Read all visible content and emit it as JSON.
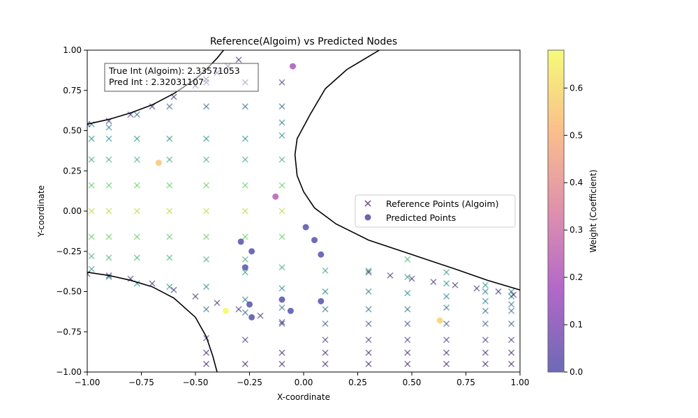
{
  "chart_data": {
    "type": "scatter",
    "title": "Reference(Algoim) vs Predicted Nodes",
    "xlabel": "X-coordinate",
    "ylabel": "Y-coordinate",
    "xlim": [
      -1.0,
      1.0
    ],
    "ylim": [
      -1.0,
      1.0
    ],
    "xticks": [
      -1.0,
      -0.75,
      -0.5,
      -0.25,
      0.0,
      0.25,
      0.5,
      0.75,
      1.0
    ],
    "yticks": [
      -1.0,
      -0.75,
      -0.5,
      -0.25,
      0.0,
      0.25,
      0.5,
      0.75,
      1.0
    ],
    "xtick_labels": [
      "−1.00",
      "−0.75",
      "−0.50",
      "−0.25",
      "0.00",
      "0.25",
      "0.50",
      "0.75",
      "1.00"
    ],
    "ytick_labels": [
      "−1.00",
      "−0.75",
      "−0.50",
      "−0.25",
      "0.00",
      "0.25",
      "0.50",
      "0.75",
      "1.00"
    ],
    "grid": false,
    "legend_position": "center-right",
    "annotation": {
      "line1": "True Int (Algoim): 2.33571053",
      "line2": "Pred Int : 2.32031107",
      "position": "top-left"
    },
    "colorbar": {
      "label": "Weight (Coefficient)",
      "range": [
        0.0,
        0.68
      ],
      "ticks": [
        0.0,
        0.1,
        0.2,
        0.3,
        0.4,
        0.5,
        0.6
      ],
      "tick_labels": [
        "0.0",
        "0.1",
        "0.2",
        "0.3",
        "0.4",
        "0.5",
        "0.6"
      ],
      "colormap": "plasma"
    },
    "series": [
      {
        "name": "Reference Points (Algoim)",
        "marker": "x",
        "colormap": "viridis",
        "opacity": 0.6,
        "columns": [
          {
            "x": -0.98,
            "ys": [
              0.54,
              0.45,
              0.32,
              0.16,
              0.0,
              -0.16,
              -0.28,
              -0.36
            ]
          },
          {
            "x": -0.9,
            "ys": [
              0.52,
              0.45,
              0.32,
              0.16,
              0.0,
              -0.16,
              -0.29,
              -0.41
            ]
          },
          {
            "x": -0.77,
            "ys": [
              0.6,
              0.45,
              0.32,
              0.16,
              0.0,
              -0.16,
              -0.29,
              -0.45
            ]
          },
          {
            "x": -0.62,
            "ys": [
              0.65,
              0.45,
              0.32,
              0.16,
              0.0,
              -0.16,
              -0.29,
              -0.47
            ]
          },
          {
            "x": -0.45,
            "ys": [
              0.8,
              0.65,
              0.45,
              0.32,
              0.16,
              0.0,
              -0.16,
              -0.3,
              -0.47,
              -0.61,
              -0.79,
              -0.88,
              -0.95
            ]
          },
          {
            "x": -0.27,
            "ys": [
              0.8,
              0.65,
              0.45,
              0.32,
              0.16,
              0.0,
              -0.16,
              -0.3,
              -0.38,
              -0.55,
              -0.63,
              -0.8,
              -0.95
            ]
          },
          {
            "x": -0.1,
            "ys": [
              0.8,
              0.65,
              0.55,
              0.47,
              0.32,
              0.16,
              0.0,
              -0.16,
              -0.35,
              -0.48,
              -0.6,
              -0.7,
              -0.88,
              -0.95
            ]
          },
          {
            "x": 0.1,
            "ys": [
              -0.37,
              -0.5,
              -0.61,
              -0.7,
              -0.8,
              -0.88,
              -0.95
            ]
          },
          {
            "x": 0.3,
            "ys": [
              -0.37,
              -0.5,
              -0.61,
              -0.7,
              -0.8,
              -0.88,
              -0.95
            ]
          },
          {
            "x": 0.48,
            "ys": [
              -0.3,
              -0.41,
              -0.51,
              -0.61,
              -0.7,
              -0.8,
              -0.88,
              -0.95
            ]
          },
          {
            "x": 0.66,
            "ys": [
              -0.38,
              -0.45,
              -0.53,
              -0.6,
              -0.7,
              -0.8,
              -0.88,
              -0.95
            ]
          },
          {
            "x": 0.84,
            "ys": [
              -0.46,
              -0.5,
              -0.56,
              -0.62,
              -0.7,
              -0.8,
              -0.88,
              -0.95
            ]
          },
          {
            "x": 0.96,
            "ys": [
              -0.5,
              -0.53,
              -0.58,
              -0.62,
              -0.7,
              -0.8,
              -0.88,
              -0.95
            ]
          }
        ],
        "curve_upper_left": [
          [
            -1.0,
            0.54
          ],
          [
            -0.9,
            0.56
          ],
          [
            -0.8,
            0.6
          ],
          [
            -0.7,
            0.65
          ],
          [
            -0.6,
            0.71
          ],
          [
            -0.5,
            0.78
          ],
          [
            -0.45,
            0.82
          ],
          [
            -0.4,
            0.86
          ],
          [
            -0.35,
            0.9
          ],
          [
            -0.3,
            0.94
          ]
        ],
        "curve_lower_left": [
          [
            -1.0,
            -0.39
          ],
          [
            -0.9,
            -0.4
          ],
          [
            -0.8,
            -0.42
          ],
          [
            -0.7,
            -0.45
          ],
          [
            -0.6,
            -0.49
          ],
          [
            -0.5,
            -0.53
          ],
          [
            -0.4,
            -0.57
          ],
          [
            -0.3,
            -0.61
          ],
          [
            -0.2,
            -0.65
          ],
          [
            -0.1,
            -0.69
          ]
        ],
        "curve_lower_right": [
          [
            0.3,
            -0.38
          ],
          [
            0.4,
            -0.4
          ],
          [
            0.5,
            -0.42
          ],
          [
            0.6,
            -0.44
          ],
          [
            0.7,
            -0.46
          ],
          [
            0.8,
            -0.48
          ],
          [
            0.9,
            -0.5
          ],
          [
            0.97,
            -0.52
          ]
        ]
      },
      {
        "name": "Predicted Points",
        "marker": "o",
        "colormap": "plasma",
        "opacity": 0.6,
        "points": [
          {
            "x": -0.05,
            "y": 0.9,
            "w": 0.2
          },
          {
            "x": -0.67,
            "y": 0.3,
            "w": 0.55
          },
          {
            "x": -0.13,
            "y": 0.09,
            "w": 0.23
          },
          {
            "x": 0.01,
            "y": -0.1,
            "w": 0.0
          },
          {
            "x": -0.29,
            "y": -0.19,
            "w": 0.0
          },
          {
            "x": 0.05,
            "y": -0.18,
            "w": 0.0
          },
          {
            "x": -0.24,
            "y": -0.25,
            "w": 0.0
          },
          {
            "x": 0.08,
            "y": -0.27,
            "w": 0.0
          },
          {
            "x": -0.27,
            "y": -0.35,
            "w": 0.0
          },
          {
            "x": -0.1,
            "y": -0.55,
            "w": 0.0
          },
          {
            "x": 0.08,
            "y": -0.56,
            "w": 0.0
          },
          {
            "x": -0.25,
            "y": -0.58,
            "w": 0.0
          },
          {
            "x": -0.36,
            "y": -0.62,
            "w": 0.68
          },
          {
            "x": -0.06,
            "y": -0.62,
            "w": 0.0
          },
          {
            "x": -0.24,
            "y": -0.66,
            "w": 0.0
          },
          {
            "x": 0.63,
            "y": -0.68,
            "w": 0.58
          }
        ]
      },
      {
        "name": "Boundary",
        "upper": [
          [
            -1.0,
            0.54
          ],
          [
            -0.9,
            0.57
          ],
          [
            -0.8,
            0.61
          ],
          [
            -0.7,
            0.66
          ],
          [
            -0.6,
            0.73
          ],
          [
            -0.5,
            0.82
          ],
          [
            -0.45,
            0.88
          ],
          [
            -0.4,
            0.95
          ],
          [
            -0.37,
            1.0
          ]
        ],
        "lower": [
          [
            -1.0,
            -0.38
          ],
          [
            -0.9,
            -0.4
          ],
          [
            -0.8,
            -0.43
          ],
          [
            -0.7,
            -0.47
          ],
          [
            -0.6,
            -0.54
          ],
          [
            -0.5,
            -0.66
          ],
          [
            -0.45,
            -0.78
          ],
          [
            -0.42,
            -0.9
          ],
          [
            -0.4,
            -1.0
          ]
        ],
        "right": [
          [
            0.35,
            1.0
          ],
          [
            0.3,
            0.96
          ],
          [
            0.2,
            0.88
          ],
          [
            0.1,
            0.76
          ],
          [
            0.03,
            0.6
          ],
          [
            -0.03,
            0.45
          ],
          [
            -0.04,
            0.35
          ],
          [
            -0.03,
            0.22
          ],
          [
            0.0,
            0.12
          ],
          [
            0.05,
            0.02
          ],
          [
            0.15,
            -0.08
          ],
          [
            0.3,
            -0.18
          ],
          [
            0.5,
            -0.27
          ],
          [
            0.7,
            -0.36
          ],
          [
            0.85,
            -0.43
          ],
          [
            1.0,
            -0.49
          ]
        ]
      }
    ]
  }
}
